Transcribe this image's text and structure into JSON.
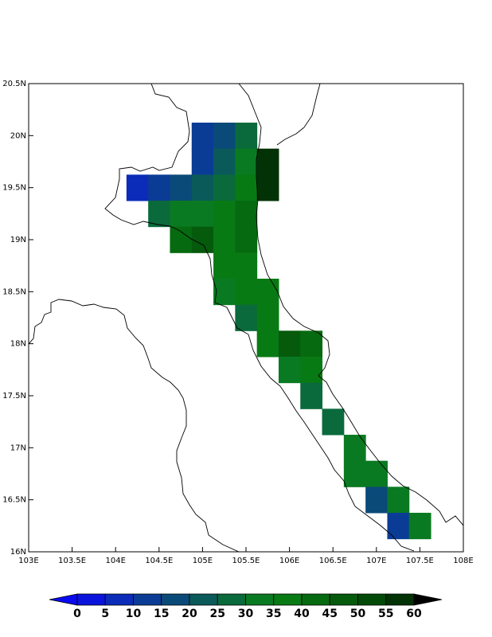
{
  "chart_data": {
    "type": "gridmap",
    "xlim": [
      103,
      108
    ],
    "ylim": [
      16,
      20.5
    ],
    "xticks": [
      {
        "value": 103,
        "label": "103E"
      },
      {
        "value": 103.5,
        "label": "103.5E"
      },
      {
        "value": 104,
        "label": "104E"
      },
      {
        "value": 104.5,
        "label": "104.5E"
      },
      {
        "value": 105,
        "label": "105E"
      },
      {
        "value": 105.5,
        "label": "105.5E"
      },
      {
        "value": 106,
        "label": "106E"
      },
      {
        "value": 106.5,
        "label": "106.5E"
      },
      {
        "value": 107,
        "label": "107E"
      },
      {
        "value": 107.5,
        "label": "107.5E"
      },
      {
        "value": 108,
        "label": "108E"
      }
    ],
    "yticks": [
      {
        "value": 16,
        "label": "16N"
      },
      {
        "value": 16.5,
        "label": "16.5N"
      },
      {
        "value": 17,
        "label": "17N"
      },
      {
        "value": 17.5,
        "label": "17.5N"
      },
      {
        "value": 18,
        "label": "18N"
      },
      {
        "value": 18.5,
        "label": "18.5N"
      },
      {
        "value": 19,
        "label": "19N"
      },
      {
        "value": 19.5,
        "label": "19.5N"
      },
      {
        "value": 20,
        "label": "20N"
      },
      {
        "value": 20.5,
        "label": "20.5N"
      }
    ],
    "levels": [
      0,
      5,
      10,
      15,
      20,
      25,
      30,
      35,
      40,
      45,
      50,
      55,
      60
    ],
    "colors": [
      "#0a0af0",
      "#0a14dc",
      "#0a2cb8",
      "#0a3c96",
      "#0a4a78",
      "#0a5a5a",
      "#0a6a3c",
      "#0a7a22",
      "#087a14",
      "#066a10",
      "#055a0c",
      "#034a08",
      "#023206",
      "#000000"
    ],
    "grid": {
      "lon": [
        104.25,
        104.5,
        104.75,
        105,
        105.25,
        105.5,
        105.75,
        106,
        106.25,
        106.5,
        106.75,
        107,
        107.25,
        107.5
      ],
      "lat": [
        20,
        19.75,
        19.5,
        19.25,
        19,
        18.75,
        18.5,
        18.25,
        18,
        17.75,
        17.5,
        17.25,
        17,
        16.75,
        16.5,
        16.25
      ],
      "values": [
        [
          null,
          null,
          null,
          10,
          18,
          25,
          null,
          null,
          null,
          null,
          null,
          null,
          null,
          null
        ],
        [
          null,
          null,
          null,
          12,
          20,
          30,
          55,
          null,
          null,
          null,
          null,
          null,
          null,
          null
        ],
        [
          8,
          12,
          15,
          20,
          25,
          35,
          55,
          null,
          null,
          null,
          null,
          null,
          null,
          null
        ],
        [
          null,
          28,
          30,
          32,
          35,
          40,
          null,
          null,
          null,
          null,
          null,
          null,
          null,
          null
        ],
        [
          null,
          null,
          42,
          45,
          38,
          40,
          null,
          null,
          null,
          null,
          null,
          null,
          null,
          null
        ],
        [
          null,
          null,
          null,
          null,
          35,
          38,
          null,
          null,
          null,
          null,
          null,
          null,
          null,
          null
        ],
        [
          null,
          null,
          null,
          null,
          30,
          35,
          35,
          null,
          null,
          null,
          null,
          null,
          null,
          null
        ],
        [
          null,
          null,
          null,
          null,
          null,
          25,
          35,
          null,
          null,
          null,
          null,
          null,
          null,
          null
        ],
        [
          null,
          null,
          null,
          null,
          null,
          null,
          35,
          45,
          40,
          null,
          null,
          null,
          null,
          null
        ],
        [
          null,
          null,
          null,
          null,
          null,
          null,
          null,
          32,
          35,
          null,
          null,
          null,
          null,
          null
        ],
        [
          null,
          null,
          null,
          null,
          null,
          null,
          null,
          null,
          25,
          null,
          null,
          null,
          null,
          null
        ],
        [
          null,
          null,
          null,
          null,
          null,
          null,
          null,
          null,
          null,
          28,
          null,
          null,
          null,
          null
        ],
        [
          null,
          null,
          null,
          null,
          null,
          null,
          null,
          null,
          null,
          null,
          32,
          null,
          null,
          null
        ],
        [
          null,
          null,
          null,
          null,
          null,
          null,
          null,
          null,
          null,
          null,
          30,
          30,
          null,
          null
        ],
        [
          null,
          null,
          null,
          null,
          null,
          null,
          null,
          null,
          null,
          null,
          null,
          15,
          30,
          null
        ],
        [
          null,
          null,
          null,
          null,
          null,
          null,
          null,
          null,
          null,
          null,
          null,
          null,
          10,
          30
        ]
      ]
    }
  }
}
